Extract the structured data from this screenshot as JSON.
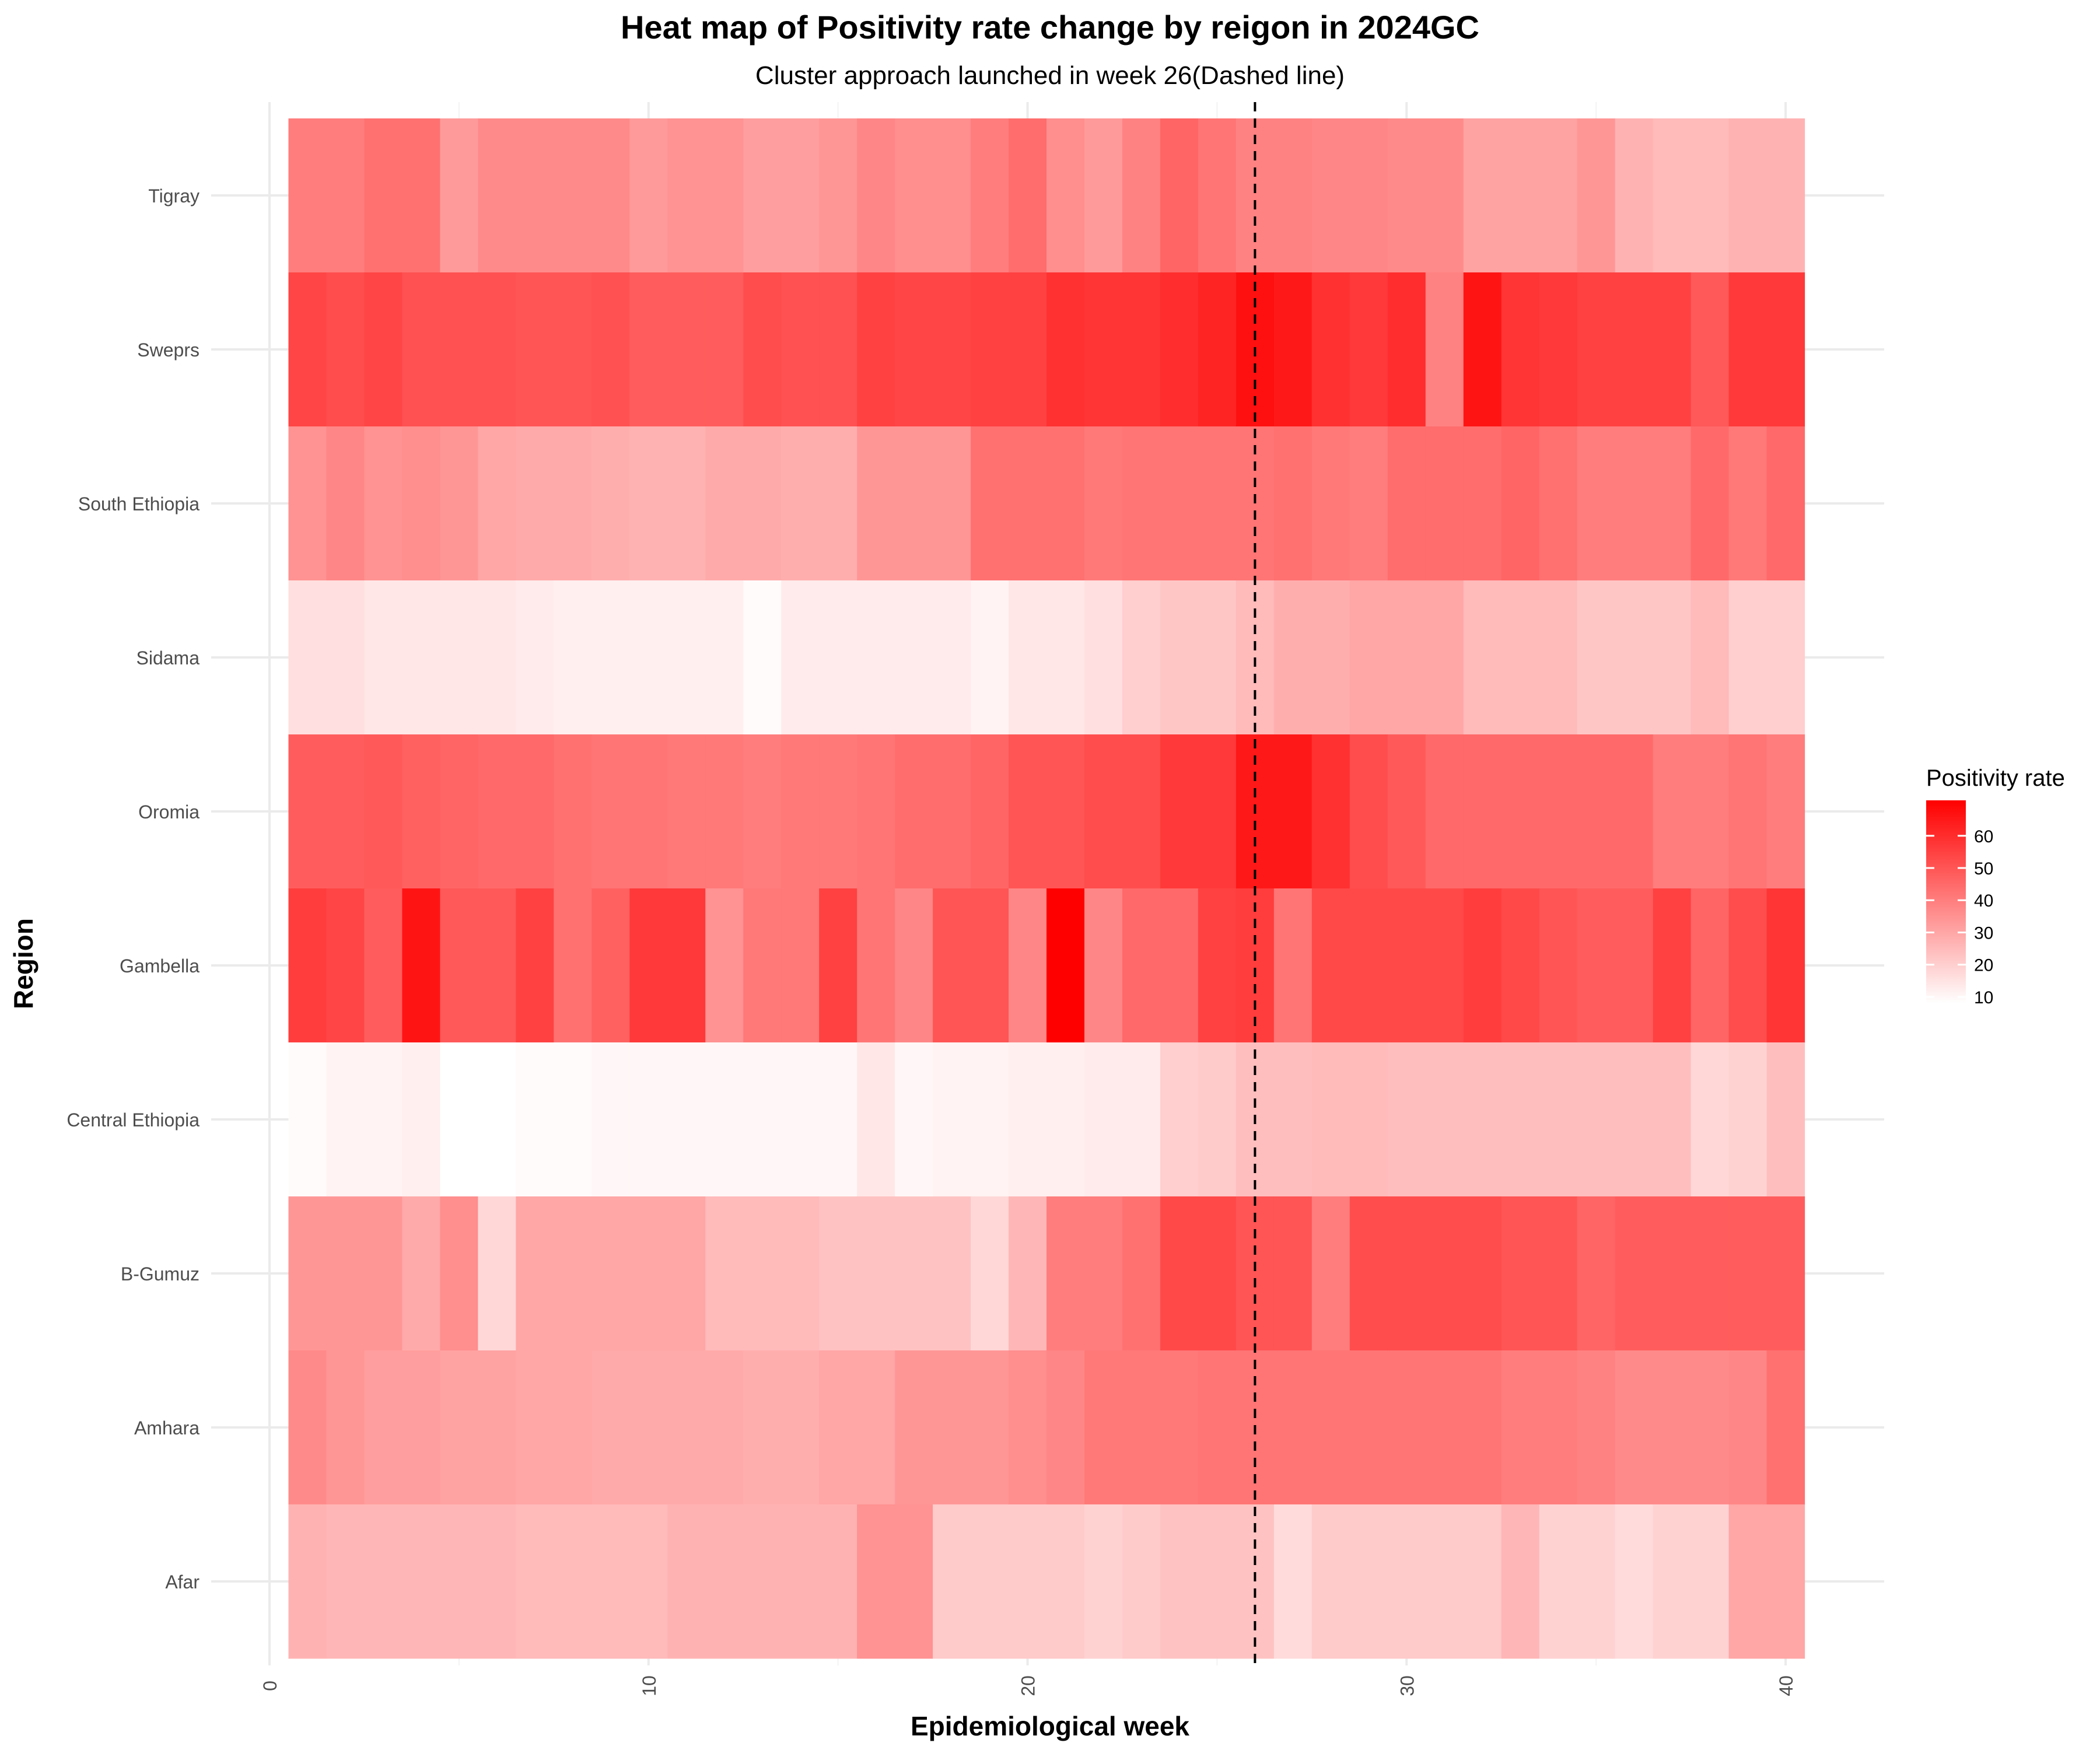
{
  "chart_data": {
    "type": "heatmap",
    "title": "Heat map of Positivity rate change by reigon in 2024GC",
    "subtitle": "Cluster approach launched in week 26(Dashed line)",
    "xlabel": "Epidemiological week",
    "ylabel": "Region",
    "xlim": [
      0,
      40.5
    ],
    "x_ticks": [
      0,
      10,
      20,
      30,
      40
    ],
    "weeks": [
      1,
      2,
      3,
      4,
      5,
      6,
      7,
      8,
      9,
      10,
      11,
      12,
      13,
      14,
      15,
      16,
      17,
      18,
      19,
      20,
      21,
      22,
      23,
      24,
      25,
      26,
      27,
      28,
      29,
      30,
      31,
      32,
      33,
      34,
      35,
      36,
      37,
      38,
      39,
      40
    ],
    "regions": [
      "Tigray",
      "Sweprs",
      "South Ethiopia",
      "Sidama",
      "Oromia",
      "Gambella",
      "Central Ethiopia",
      "B-Gumuz",
      "Amhara",
      "Afar"
    ],
    "values": {
      "Tigray": [
        40,
        40,
        43,
        43,
        33,
        37,
        37,
        37,
        37,
        33,
        35,
        35,
        32,
        32,
        34,
        38,
        36,
        36,
        40,
        44,
        36,
        33,
        39,
        46,
        42,
        39,
        39,
        38,
        38,
        37,
        37,
        31,
        31,
        31,
        34,
        27,
        25,
        25,
        27,
        27
      ],
      "Sweprs": [
        54,
        52,
        54,
        51,
        51,
        51,
        50,
        50,
        51,
        48,
        48,
        48,
        52,
        51,
        51,
        55,
        54,
        54,
        55,
        55,
        59,
        58,
        58,
        60,
        62,
        67,
        65,
        59,
        57,
        60,
        39,
        66,
        58,
        57,
        55,
        55,
        55,
        49,
        57,
        57
      ],
      "South Ethiopia": [
        35,
        38,
        35,
        36,
        34,
        30,
        29,
        29,
        28,
        27,
        27,
        29,
        29,
        28,
        28,
        34,
        34,
        34,
        43,
        43,
        43,
        41,
        42,
        42,
        42,
        42,
        43,
        41,
        40,
        44,
        44,
        44,
        46,
        43,
        40,
        40,
        40,
        45,
        41,
        45
      ],
      "Sidama": [
        16,
        16,
        14,
        14,
        14,
        14,
        13,
        12,
        12,
        12,
        12,
        12,
        9,
        13,
        13,
        13,
        13,
        13,
        11,
        14,
        14,
        16,
        20,
        22,
        22,
        25,
        28,
        28,
        30,
        30,
        30,
        25,
        25,
        25,
        22,
        22,
        22,
        25,
        20,
        20
      ],
      "Oromia": [
        48,
        48,
        49,
        47,
        46,
        45,
        45,
        43,
        42,
        42,
        41,
        41,
        40,
        41,
        41,
        42,
        44,
        44,
        46,
        50,
        50,
        52,
        52,
        57,
        57,
        65,
        65,
        59,
        52,
        49,
        45,
        45,
        45,
        45,
        45,
        45,
        40,
        40,
        42,
        40
      ],
      "Gambella": [
        56,
        54,
        48,
        66,
        49,
        49,
        55,
        43,
        47,
        57,
        57,
        35,
        41,
        41,
        55,
        42,
        38,
        50,
        50,
        38,
        71,
        38,
        45,
        45,
        55,
        56,
        42,
        53,
        53,
        53,
        53,
        56,
        53,
        50,
        48,
        48,
        55,
        46,
        52,
        58
      ],
      "Central Ethiopia": [
        9,
        11,
        11,
        12,
        8,
        8,
        9,
        9,
        10,
        10,
        10,
        10,
        10,
        10,
        10,
        14,
        10,
        11,
        11,
        12,
        12,
        13,
        13,
        20,
        21,
        24,
        24,
        25,
        25,
        24,
        24,
        24,
        24,
        24,
        24,
        24,
        24,
        18,
        19,
        24
      ],
      "B-Gumuz": [
        34,
        34,
        34,
        29,
        36,
        18,
        30,
        30,
        30,
        30,
        30,
        25,
        25,
        25,
        23,
        23,
        23,
        23,
        18,
        26,
        40,
        40,
        43,
        53,
        53,
        50,
        50,
        40,
        52,
        52,
        52,
        52,
        50,
        50,
        46,
        48,
        48,
        48,
        48,
        48
      ],
      "Amhara": [
        37,
        34,
        32,
        32,
        31,
        31,
        30,
        30,
        29,
        29,
        29,
        29,
        28,
        28,
        30,
        30,
        34,
        34,
        34,
        36,
        38,
        41,
        41,
        41,
        42,
        42,
        42,
        42,
        42,
        42,
        42,
        42,
        40,
        40,
        39,
        37,
        37,
        37,
        38,
        43
      ],
      "Afar": [
        27,
        26,
        26,
        26,
        26,
        26,
        25,
        25,
        25,
        25,
        27,
        27,
        27,
        27,
        27,
        35,
        35,
        21,
        21,
        21,
        21,
        19,
        21,
        23,
        23,
        23,
        17,
        21,
        21,
        21,
        21,
        21,
        26,
        19,
        19,
        17,
        19,
        19,
        30,
        30
      ]
    },
    "vline": {
      "x": 26,
      "style": "dashed"
    },
    "color_scale": {
      "low": "#ffffff",
      "high": "#ff0000",
      "min": 8,
      "max": 71
    },
    "legend": {
      "title": "Positivity rate",
      "ticks": [
        10,
        20,
        30,
        40,
        50,
        60
      ],
      "position": "right"
    },
    "grid": true
  }
}
